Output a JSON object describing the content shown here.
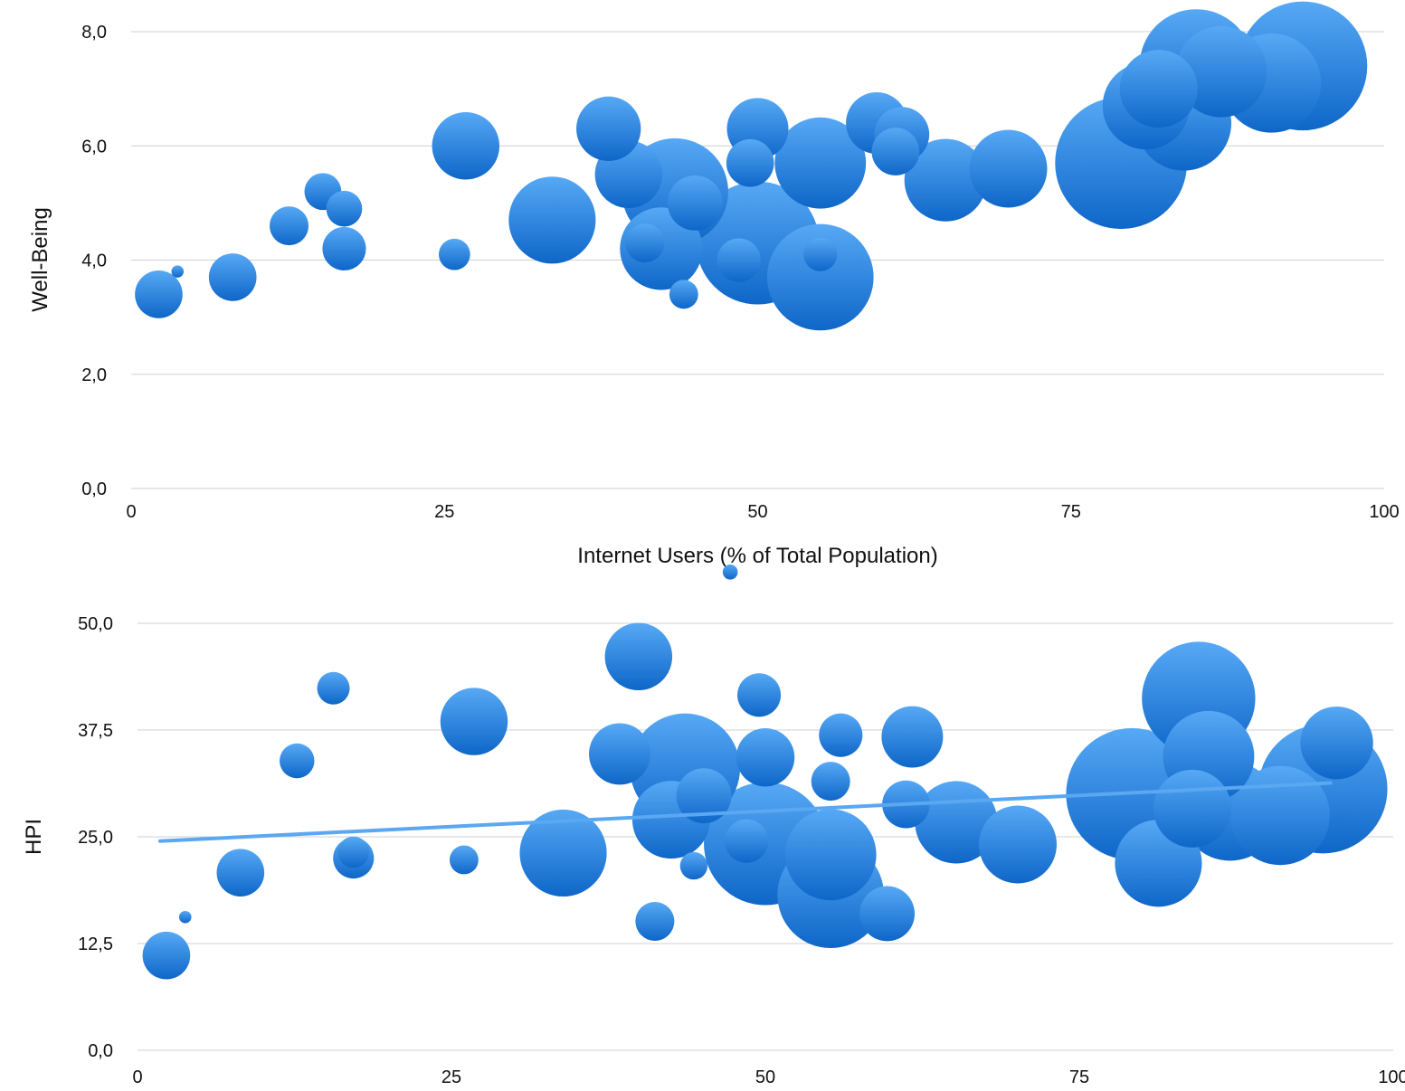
{
  "colors": {
    "bubble_light": "#57a9f5",
    "bubble_dark": "#0e66c8",
    "trend": "#5aa7f2",
    "grid": "#d0d0d0"
  },
  "chart_data": [
    {
      "type": "scatter",
      "subtype": "bubble",
      "title": "",
      "xlabel": "Internet Users (% of Total Population)",
      "ylabel": "Well-Being",
      "xlim": [
        0,
        100
      ],
      "ylim": [
        0,
        8
      ],
      "x_ticks": [
        "0",
        "25",
        "50",
        "75",
        "100"
      ],
      "y_ticks": [
        "0,0",
        "2,0",
        "4,0",
        "6,0",
        "8,0"
      ],
      "grid": true,
      "legend": "none",
      "points": [
        {
          "x": 2.2,
          "y": 3.4,
          "size": 3
        },
        {
          "x": 3.7,
          "y": 3.8,
          "size": 0.2
        },
        {
          "x": 8.1,
          "y": 3.7,
          "size": 3
        },
        {
          "x": 12.6,
          "y": 4.6,
          "size": 2
        },
        {
          "x": 15.3,
          "y": 5.2,
          "size": 1.8
        },
        {
          "x": 17.0,
          "y": 4.9,
          "size": 1.7
        },
        {
          "x": 17.0,
          "y": 4.2,
          "size": 2.5
        },
        {
          "x": 25.8,
          "y": 4.1,
          "size": 1.3
        },
        {
          "x": 26.7,
          "y": 6.0,
          "size": 6
        },
        {
          "x": 33.6,
          "y": 4.7,
          "size": 10
        },
        {
          "x": 38.1,
          "y": 6.3,
          "size": 5.5
        },
        {
          "x": 39.7,
          "y": 5.5,
          "size": 6
        },
        {
          "x": 42.3,
          "y": 4.2,
          "size": 9
        },
        {
          "x": 41.0,
          "y": 4.3,
          "size": 2
        },
        {
          "x": 43.4,
          "y": 5.2,
          "size": 15
        },
        {
          "x": 45.0,
          "y": 5.0,
          "size": 4
        },
        {
          "x": 44.1,
          "y": 3.4,
          "size": 1.1
        },
        {
          "x": 48.5,
          "y": 4.0,
          "size": 2.5
        },
        {
          "x": 49.4,
          "y": 5.7,
          "size": 3
        },
        {
          "x": 50.0,
          "y": 4.3,
          "size": 20
        },
        {
          "x": 50.0,
          "y": 6.3,
          "size": 5
        },
        {
          "x": 55.0,
          "y": 3.7,
          "size": 15
        },
        {
          "x": 55.0,
          "y": 4.1,
          "size": 1.5
        },
        {
          "x": 55.0,
          "y": 5.7,
          "size": 11
        },
        {
          "x": 59.5,
          "y": 6.4,
          "size": 5
        },
        {
          "x": 61.5,
          "y": 6.2,
          "size": 4
        },
        {
          "x": 61.0,
          "y": 5.9,
          "size": 3
        },
        {
          "x": 65.0,
          "y": 5.4,
          "size": 9
        },
        {
          "x": 70.0,
          "y": 5.6,
          "size": 8
        },
        {
          "x": 79.0,
          "y": 5.7,
          "size": 23
        },
        {
          "x": 84.0,
          "y": 6.4,
          "size": 12
        },
        {
          "x": 82.0,
          "y": 7.0,
          "size": 8
        },
        {
          "x": 85.0,
          "y": 7.4,
          "size": 17
        },
        {
          "x": 87.0,
          "y": 7.3,
          "size": 11
        },
        {
          "x": 91.0,
          "y": 7.1,
          "size": 13
        },
        {
          "x": 93.5,
          "y": 7.4,
          "size": 22
        },
        {
          "x": 81.0,
          "y": 6.7,
          "size": 10
        }
      ]
    },
    {
      "type": "scatter",
      "subtype": "bubble",
      "title": "",
      "xlabel": "",
      "ylabel": "HPI",
      "xlim": [
        0,
        100
      ],
      "ylim": [
        0,
        50
      ],
      "x_ticks": [
        "0",
        "25",
        "50",
        "75",
        "100"
      ],
      "y_ticks": [
        "0,0",
        "12,5",
        "25,0",
        "37,5",
        "50,0"
      ],
      "grid": true,
      "legend": "none",
      "trendline": {
        "x": [
          1.8,
          95.0
        ],
        "y": [
          24.5,
          31.3
        ]
      },
      "points": [
        {
          "x": 47.2,
          "y": 56.0,
          "size": 0.3
        },
        {
          "x": 2.3,
          "y": 11.1,
          "size": 3
        },
        {
          "x": 3.8,
          "y": 15.6,
          "size": 0.2
        },
        {
          "x": 8.2,
          "y": 20.8,
          "size": 3
        },
        {
          "x": 12.7,
          "y": 33.9,
          "size": 1.6
        },
        {
          "x": 15.6,
          "y": 42.4,
          "size": 1.4
        },
        {
          "x": 17.2,
          "y": 23.2,
          "size": 1.3
        },
        {
          "x": 17.2,
          "y": 22.5,
          "size": 2.2
        },
        {
          "x": 26.0,
          "y": 22.3,
          "size": 1.1
        },
        {
          "x": 26.8,
          "y": 38.5,
          "size": 6
        },
        {
          "x": 33.9,
          "y": 23.1,
          "size": 10
        },
        {
          "x": 38.4,
          "y": 34.7,
          "size": 5
        },
        {
          "x": 39.9,
          "y": 46.1,
          "size": 6
        },
        {
          "x": 41.2,
          "y": 15.1,
          "size": 2
        },
        {
          "x": 42.5,
          "y": 27.0,
          "size": 8
        },
        {
          "x": 43.6,
          "y": 33.0,
          "size": 16
        },
        {
          "x": 45.1,
          "y": 29.8,
          "size": 4
        },
        {
          "x": 44.3,
          "y": 21.6,
          "size": 1
        },
        {
          "x": 48.5,
          "y": 24.5,
          "size": 2.5
        },
        {
          "x": 49.5,
          "y": 41.6,
          "size": 2.5
        },
        {
          "x": 50.0,
          "y": 24.2,
          "size": 20
        },
        {
          "x": 50.0,
          "y": 34.3,
          "size": 4.5
        },
        {
          "x": 55.2,
          "y": 18.2,
          "size": 15
        },
        {
          "x": 55.2,
          "y": 31.5,
          "size": 2
        },
        {
          "x": 55.2,
          "y": 22.9,
          "size": 11
        },
        {
          "x": 56.0,
          "y": 36.9,
          "size": 2.5
        },
        {
          "x": 59.7,
          "y": 16.0,
          "size": 4
        },
        {
          "x": 61.2,
          "y": 28.8,
          "size": 3
        },
        {
          "x": 61.7,
          "y": 36.7,
          "size": 5
        },
        {
          "x": 65.2,
          "y": 26.7,
          "size": 9
        },
        {
          "x": 70.1,
          "y": 24.1,
          "size": 8
        },
        {
          "x": 79.2,
          "y": 30.0,
          "size": 23
        },
        {
          "x": 81.3,
          "y": 21.9,
          "size": 10
        },
        {
          "x": 84.0,
          "y": 28.3,
          "size": 8
        },
        {
          "x": 84.5,
          "y": 41.2,
          "size": 17
        },
        {
          "x": 85.3,
          "y": 34.4,
          "size": 11
        },
        {
          "x": 87.0,
          "y": 28.0,
          "size": 13
        },
        {
          "x": 91.0,
          "y": 27.5,
          "size": 13
        },
        {
          "x": 95.5,
          "y": 36.0,
          "size": 7
        },
        {
          "x": 94.4,
          "y": 30.6,
          "size": 22
        }
      ]
    }
  ]
}
